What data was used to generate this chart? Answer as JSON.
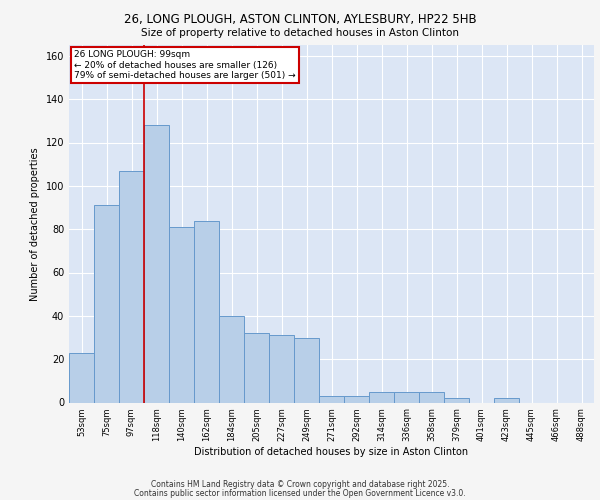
{
  "title1": "26, LONG PLOUGH, ASTON CLINTON, AYLESBURY, HP22 5HB",
  "title2": "Size of property relative to detached houses in Aston Clinton",
  "xlabel": "Distribution of detached houses by size in Aston Clinton",
  "ylabel": "Number of detached properties",
  "bar_labels": [
    "53sqm",
    "75sqm",
    "97sqm",
    "118sqm",
    "140sqm",
    "162sqm",
    "184sqm",
    "205sqm",
    "227sqm",
    "249sqm",
    "271sqm",
    "292sqm",
    "314sqm",
    "336sqm",
    "358sqm",
    "379sqm",
    "401sqm",
    "423sqm",
    "445sqm",
    "466sqm",
    "488sqm"
  ],
  "bar_values": [
    23,
    91,
    107,
    128,
    81,
    84,
    40,
    32,
    31,
    30,
    3,
    3,
    5,
    5,
    5,
    2,
    0,
    2,
    0,
    0,
    0
  ],
  "bar_color": "#b8cfe8",
  "bar_edge_color": "#6699cc",
  "background_color": "#dce6f5",
  "grid_color": "#ffffff",
  "annotation_text": "26 LONG PLOUGH: 99sqm\n← 20% of detached houses are smaller (126)\n79% of semi-detached houses are larger (501) →",
  "annotation_box_color": "#ffffff",
  "annotation_box_edge": "#cc0000",
  "vline_x": 2.5,
  "vline_color": "#cc0000",
  "ylim": [
    0,
    165
  ],
  "yticks": [
    0,
    20,
    40,
    60,
    80,
    100,
    120,
    140,
    160
  ],
  "fig_background": "#f5f5f5",
  "footer1": "Contains HM Land Registry data © Crown copyright and database right 2025.",
  "footer2": "Contains public sector information licensed under the Open Government Licence v3.0."
}
